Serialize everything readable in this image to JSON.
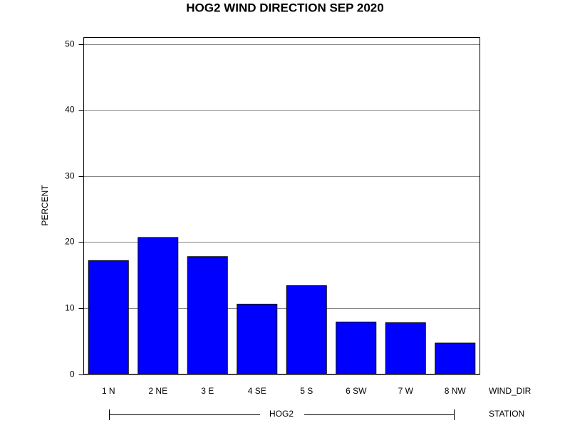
{
  "chart_data": {
    "type": "bar",
    "title": "HOG2 WIND DIRECTION SEP 2020",
    "y_label": "PERCENT",
    "x_label": "WIND_DIR",
    "group_label": "STATION",
    "group": "HOG2",
    "categories": [
      "1 N",
      "2 NE",
      "3 E",
      "4 SE",
      "5 S",
      "6 SW",
      "7 W",
      "8 NW"
    ],
    "values": [
      17.2,
      20.7,
      17.8,
      10.6,
      13.4,
      7.9,
      7.8,
      4.7
    ],
    "color": "#0000ff",
    "ylim": [
      0,
      51
    ],
    "yticks": [
      0,
      10,
      20,
      30,
      40,
      50
    ],
    "grid": true
  }
}
